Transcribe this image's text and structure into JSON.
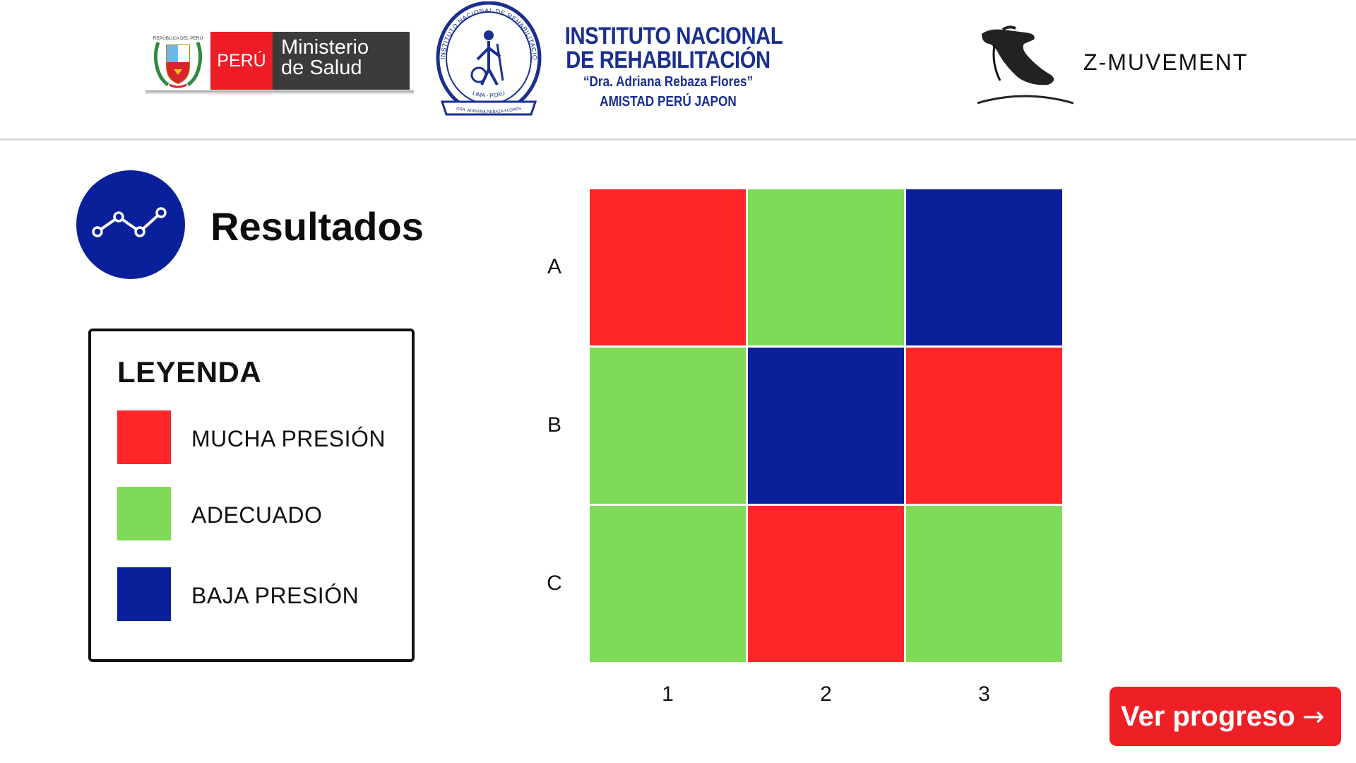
{
  "header": {
    "minsa_logo": {
      "country": "PERÚ",
      "ministry_line1": "Ministerio",
      "ministry_line2": "de Salud",
      "shield_caption": "REPÚBLICA DEL PERÚ"
    },
    "institute": {
      "line1": "INSTITUTO NACIONAL",
      "line2": "DE REHABILITACIÓN",
      "line3": "“Dra. Adriana Rebaza Flores”",
      "line4": "AMISTAD PERÚ JAPON",
      "seal_ring_text": "INSTITUTO NACIONAL DE REHABILITACIÓN",
      "seal_bottom_text": "LIMA - PERÚ",
      "seal_ribbon_text": "DRA. ADRIANA REBAZA FLORES"
    },
    "brand": {
      "name": "Z-MUVEMENT",
      "icon": "foot-arch-icon"
    }
  },
  "section": {
    "title": "Resultados",
    "icon": "line-chart-icon"
  },
  "legend": {
    "title": "LEYENDA",
    "items": [
      {
        "label": "MUCHA PRESIÓN",
        "color": "#ff262a"
      },
      {
        "label": "ADECUADO",
        "color": "#7fda58"
      },
      {
        "label": "BAJA PRESIÓN",
        "color": "#0a1f9a"
      }
    ]
  },
  "chart_data": {
    "type": "heatmap",
    "rows": [
      "A",
      "B",
      "C"
    ],
    "columns": [
      "1",
      "2",
      "3"
    ],
    "categories": [
      "MUCHA PRESIÓN",
      "ADECUADO",
      "BAJA PRESIÓN"
    ],
    "colors": {
      "MUCHA PRESIÓN": "#ff262a",
      "ADECUADO": "#7fda58",
      "BAJA PRESIÓN": "#0a1f9a"
    },
    "values": [
      [
        "MUCHA PRESIÓN",
        "ADECUADO",
        "BAJA PRESIÓN"
      ],
      [
        "ADECUADO",
        "BAJA PRESIÓN",
        "MUCHA PRESIÓN"
      ],
      [
        "ADECUADO",
        "MUCHA PRESIÓN",
        "ADECUADO"
      ]
    ]
  },
  "actions": {
    "progress_label": "Ver progreso",
    "progress_arrow": "→"
  },
  "colors": {
    "accent_blue": "#0a1f9a",
    "accent_red": "#ef2025",
    "institute_text": "#1a2f8f"
  }
}
